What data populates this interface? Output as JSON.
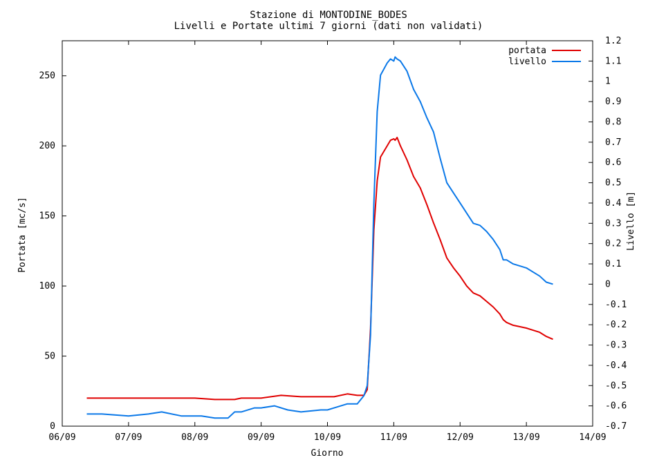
{
  "chart_data": {
    "type": "line",
    "title": "Stazione di MONTODINE_BODES",
    "subtitle": "Livelli e Portate ultimi 7 giorni (dati non validati)",
    "xlabel": "Giorno",
    "ylabel_left": "Portata [mc/s]",
    "ylabel_right": "Livello [m]",
    "x_ticks": [
      "06/09",
      "07/09",
      "08/09",
      "09/09",
      "10/09",
      "11/09",
      "12/09",
      "13/09",
      "14/09"
    ],
    "xlim": [
      0,
      8
    ],
    "ylim_left": [
      0,
      275
    ],
    "ylim_right": [
      -0.7,
      1.2
    ],
    "y_ticks_left": [
      0,
      50,
      100,
      150,
      200,
      250
    ],
    "y_ticks_right": [
      -0.7,
      -0.6,
      -0.5,
      -0.4,
      -0.3,
      -0.2,
      -0.1,
      0,
      0.1,
      0.2,
      0.3,
      0.4,
      0.5,
      0.6,
      0.7,
      0.8,
      0.9,
      1,
      1.1,
      1.2
    ],
    "grid": false,
    "legend_position": "top-right",
    "series": [
      {
        "name": "portata",
        "axis": "left",
        "color": "#e00000",
        "x": [
          0.37,
          0.6,
          1.0,
          1.5,
          2.0,
          2.3,
          2.6,
          2.7,
          3.0,
          3.3,
          3.6,
          3.9,
          4.0,
          4.1,
          4.3,
          4.45,
          4.55,
          4.6,
          4.65,
          4.7,
          4.75,
          4.8,
          4.9,
          4.95,
          5.0,
          5.02,
          5.05,
          5.1,
          5.2,
          5.3,
          5.4,
          5.5,
          5.6,
          5.7,
          5.8,
          5.9,
          6.0,
          6.1,
          6.2,
          6.3,
          6.4,
          6.5,
          6.6,
          6.65,
          6.7,
          6.8,
          7.0,
          7.2,
          7.3,
          7.4
        ],
        "y": [
          20,
          20,
          20,
          20,
          20,
          19,
          19,
          20,
          20,
          22,
          21,
          21,
          21,
          21,
          23,
          22,
          22,
          26,
          70,
          140,
          175,
          192,
          200,
          204,
          205,
          204,
          206,
          200,
          190,
          178,
          170,
          158,
          145,
          133,
          120,
          113,
          107,
          100,
          95,
          93,
          89,
          85,
          80,
          76,
          74,
          72,
          70,
          67,
          64,
          62
        ]
      },
      {
        "name": "livello",
        "axis": "right",
        "color": "#0a78e8",
        "x": [
          0.37,
          0.6,
          1.0,
          1.3,
          1.5,
          1.8,
          2.0,
          2.1,
          2.3,
          2.5,
          2.6,
          2.7,
          2.9,
          3.0,
          3.2,
          3.4,
          3.6,
          3.9,
          4.0,
          4.1,
          4.3,
          4.45,
          4.55,
          4.6,
          4.65,
          4.7,
          4.75,
          4.8,
          4.9,
          4.95,
          5.0,
          5.02,
          5.05,
          5.1,
          5.2,
          5.3,
          5.4,
          5.5,
          5.6,
          5.7,
          5.8,
          5.9,
          6.0,
          6.1,
          6.2,
          6.3,
          6.4,
          6.5,
          6.6,
          6.65,
          6.7,
          6.8,
          7.0,
          7.2,
          7.3,
          7.4
        ],
        "y": [
          -0.64,
          -0.64,
          -0.65,
          -0.64,
          -0.63,
          -0.65,
          -0.65,
          -0.65,
          -0.66,
          -0.66,
          -0.63,
          -0.63,
          -0.61,
          -0.61,
          -0.6,
          -0.62,
          -0.63,
          -0.62,
          -0.62,
          -0.61,
          -0.59,
          -0.59,
          -0.55,
          -0.5,
          -0.25,
          0.4,
          0.85,
          1.03,
          1.09,
          1.11,
          1.1,
          1.12,
          1.11,
          1.1,
          1.05,
          0.96,
          0.9,
          0.82,
          0.75,
          0.62,
          0.5,
          0.45,
          0.4,
          0.35,
          0.3,
          0.29,
          0.26,
          0.22,
          0.17,
          0.12,
          0.12,
          0.1,
          0.08,
          0.04,
          0.01,
          0
        ]
      }
    ]
  }
}
